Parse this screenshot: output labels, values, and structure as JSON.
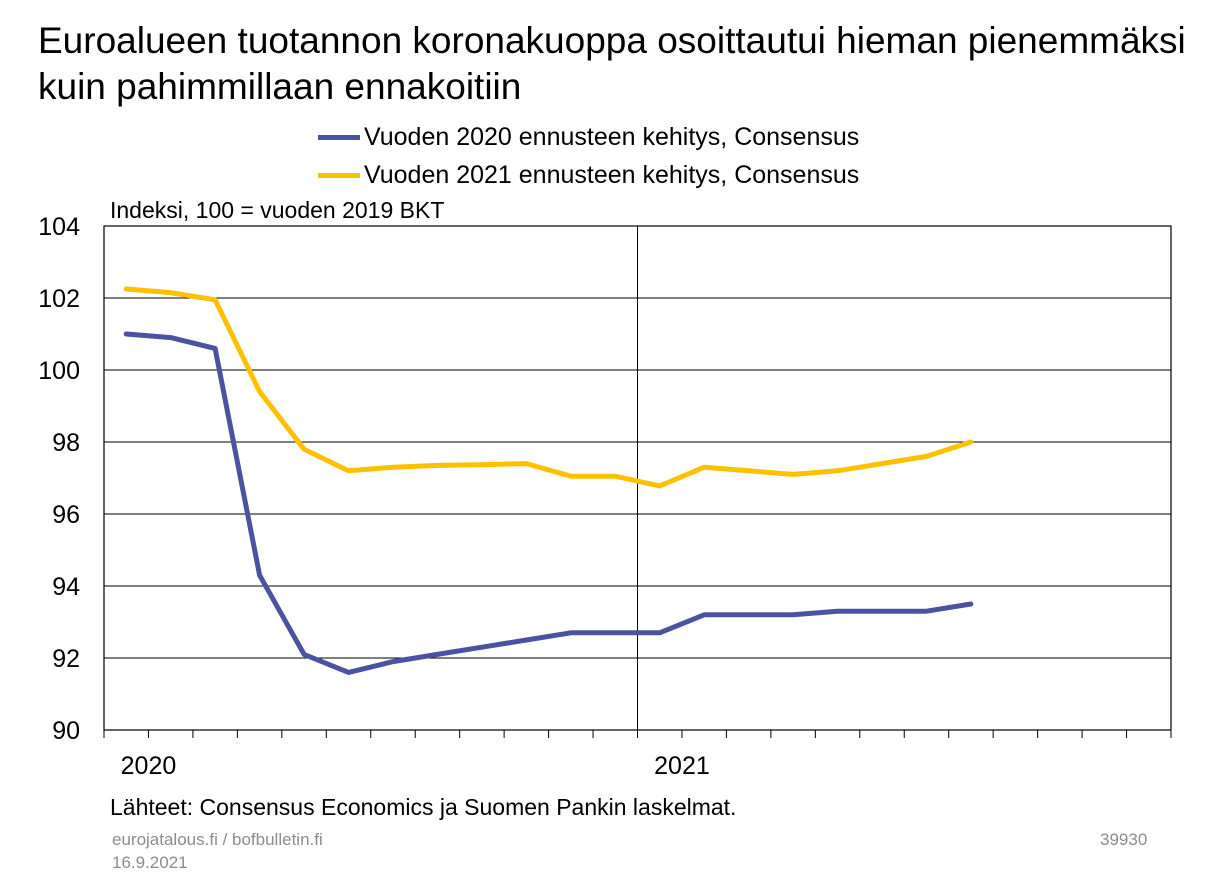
{
  "title": "Euroalueen tuotannon koronakuoppa osoittautui hieman pienemmäksi kuin pahimmillaan ennakoitiin",
  "unit_label": "Indeksi, 100 = vuoden 2019 BKT",
  "source": "Lähteet: Consensus Economics ja Suomen Pankin laskelmat.",
  "footer": {
    "site": "eurojatalous.fi  / bofbulletin.fi",
    "date": "16.9.2021",
    "code": "39930"
  },
  "chart_data": {
    "type": "line",
    "x_axis": {
      "tick_labels": [
        "2020",
        "2021"
      ],
      "label_months": [
        1,
        13
      ],
      "range_months": [
        0,
        24
      ],
      "minor_ticks": "monthly",
      "major_gridline_at_month": 12
    },
    "y_axis": {
      "min": 90,
      "max": 104,
      "step": 2,
      "tick_labels": [
        "90",
        "92",
        "94",
        "96",
        "98",
        "100",
        "102",
        "104"
      ]
    },
    "grid": true,
    "legend_position": "top",
    "series": [
      {
        "name": "Vuoden 2020 ennusteen kehitys, Consensus",
        "color": "#4b52a2",
        "months": [
          0.5,
          1.5,
          2.5,
          3.5,
          4.5,
          5.5,
          6.5,
          7.5,
          8.5,
          9.5,
          10.5,
          11.5,
          12.5,
          13.5,
          14.5,
          15.5,
          16.5,
          17.5,
          18.5,
          19.5
        ],
        "values": [
          101.0,
          100.9,
          100.6,
          94.3,
          92.1,
          91.6,
          91.9,
          92.1,
          92.3,
          92.5,
          92.7,
          92.7,
          92.7,
          93.2,
          93.2,
          93.2,
          93.3,
          93.3,
          93.3,
          93.5
        ]
      },
      {
        "name": "Vuoden 2021 ennusteen kehitys, Consensus",
        "color": "#ffc000",
        "months": [
          0.5,
          1.5,
          2.5,
          3.5,
          4.5,
          5.5,
          6.5,
          7.5,
          8.5,
          9.5,
          10.5,
          11.5,
          12.5,
          13.5,
          14.5,
          15.5,
          16.5,
          17.5,
          18.5,
          19.5
        ],
        "values": [
          102.25,
          102.15,
          101.95,
          99.4,
          97.8,
          97.2,
          97.3,
          97.35,
          97.37,
          97.4,
          97.05,
          97.05,
          96.78,
          97.3,
          97.2,
          97.1,
          97.2,
          97.4,
          97.6,
          98.0
        ]
      }
    ]
  }
}
